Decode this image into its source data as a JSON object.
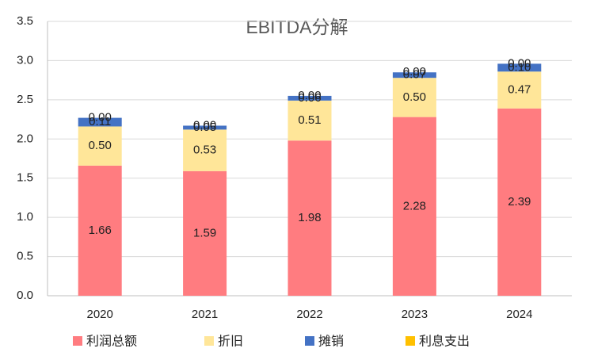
{
  "chart_data": {
    "type": "stacked-bar",
    "title": "EBITDA分解",
    "categories": [
      "2020",
      "2021",
      "2022",
      "2023",
      "2024"
    ],
    "series": [
      {
        "name": "利润总额",
        "color": "#ff7c80",
        "values": [
          1.66,
          1.59,
          1.98,
          2.28,
          2.39
        ],
        "value_labels": [
          "1.66",
          "1.59",
          "1.98",
          "2.28",
          "2.39"
        ]
      },
      {
        "name": "折旧",
        "color": "#ffe699",
        "values": [
          0.5,
          0.53,
          0.51,
          0.5,
          0.47
        ],
        "value_labels": [
          "0.50",
          "0.53",
          "0.51",
          "0.50",
          "0.47"
        ]
      },
      {
        "name": "摊销",
        "color": "#4472c4",
        "values": [
          0.11,
          0.05,
          0.06,
          0.07,
          0.1
        ],
        "value_labels": [
          "0.11",
          "0.05",
          "0.06",
          "0.07",
          "0.10"
        ]
      },
      {
        "name": "利息支出",
        "color": "#ffc000",
        "values": [
          0,
          0,
          0,
          0,
          0
        ],
        "value_labels": [
          "0.00",
          "0.00",
          "0.00",
          "0.00",
          "0.00"
        ]
      }
    ],
    "ylim": [
      0,
      3.5
    ],
    "yticks": [
      {
        "value": 0,
        "label": "0.0"
      },
      {
        "value": 0.5,
        "label": "0.5"
      },
      {
        "value": 1,
        "label": "1.0"
      },
      {
        "value": 1.5,
        "label": "1.5"
      },
      {
        "value": 2,
        "label": "2.0"
      },
      {
        "value": 2.5,
        "label": "2.5"
      },
      {
        "value": 3,
        "label": "3.0"
      },
      {
        "value": 3.5,
        "label": "3.5"
      }
    ],
    "grid": true,
    "legend": "bottom"
  }
}
